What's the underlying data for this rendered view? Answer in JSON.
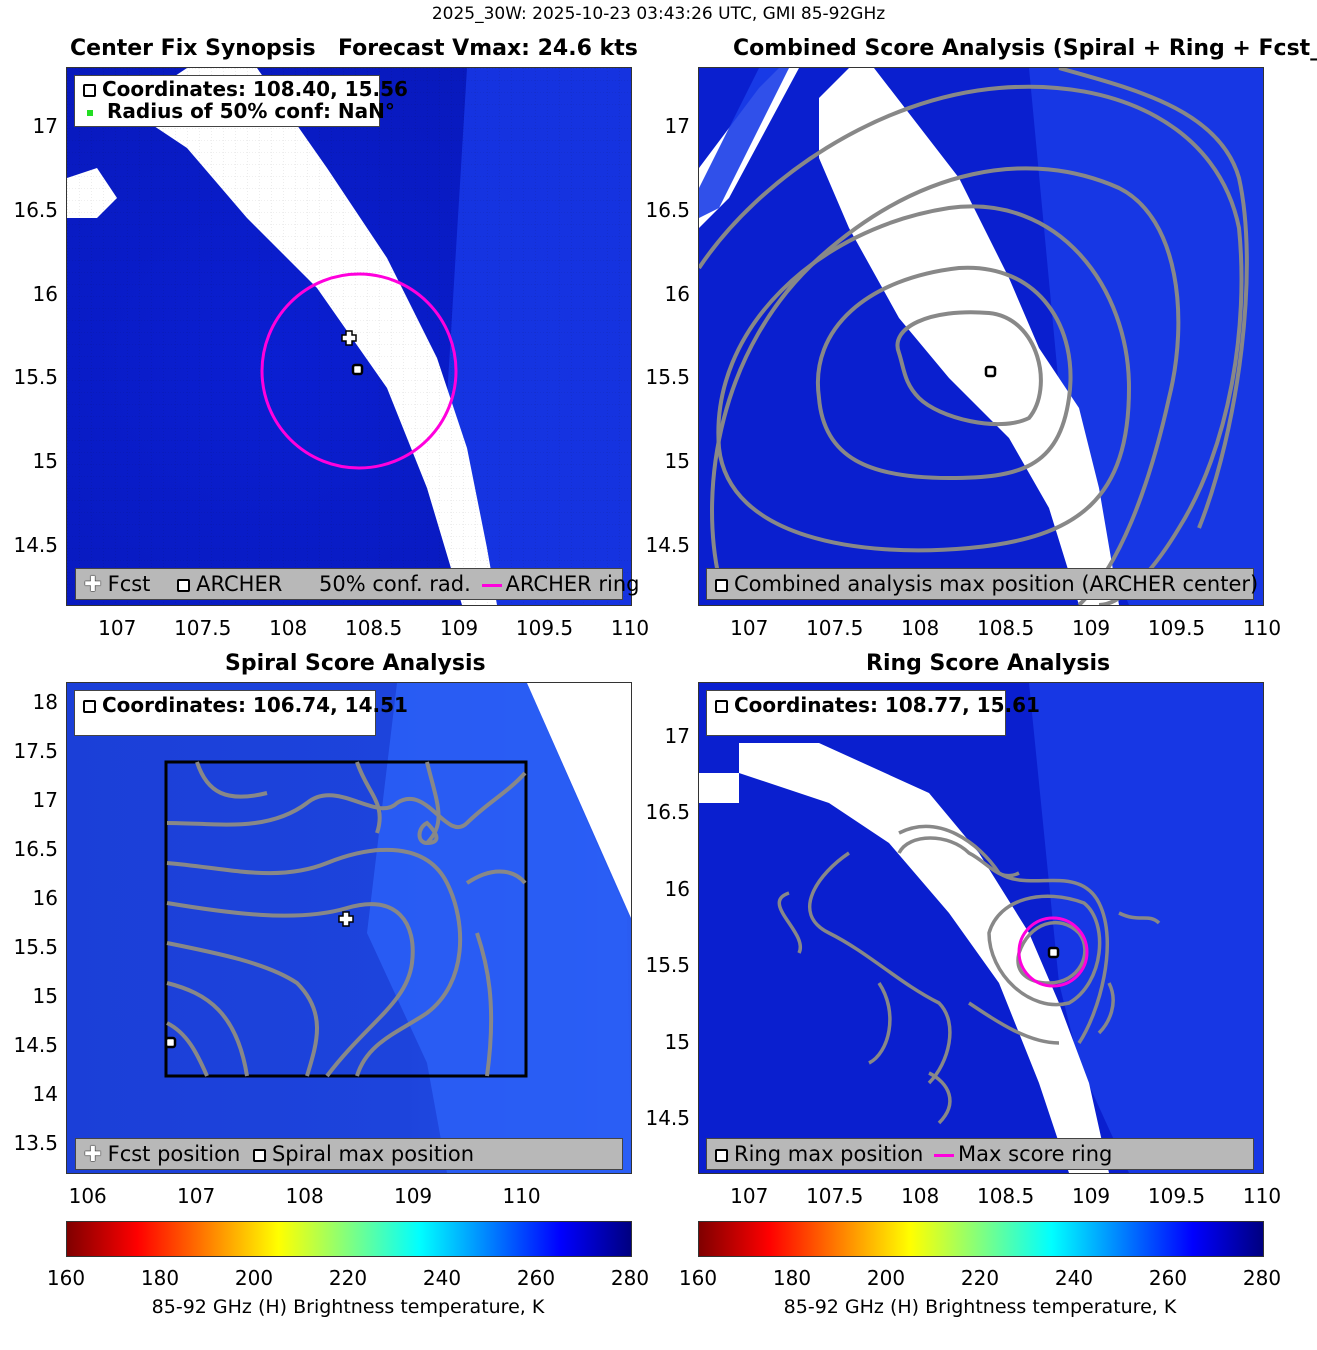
{
  "suptitle": "2025_30W: 2025-10-23 03:43:26 UTC, GMI 85-92GHz",
  "colors": {
    "background": "#0a1fd0",
    "contour": "#888888",
    "ring": "#ff00dd",
    "swath_gap": "#ffffff"
  },
  "panels": {
    "synopsis": {
      "title_left": "Center Fix Synopsis",
      "title_right": "Forecast Vmax: 24.6 kts",
      "legend_top": [
        "Coordinates: 108.40, 15.56",
        "Radius of 50% conf: NaN°"
      ],
      "legend_bottom": {
        "fcst": "Fcst",
        "archer": "ARCHER",
        "conf": "50% conf. rad.",
        "ring": "ARCHER ring"
      }
    },
    "combined": {
      "title": "Combined Score Analysis (Spiral + Ring + Fcst_Pe",
      "legend_bottom": "Combined analysis max position (ARCHER center)"
    },
    "spiral": {
      "title": "Spiral Score Analysis",
      "legend_top": "Coordinates: 106.74, 14.51",
      "legend_bottom": {
        "fcst": "Fcst position",
        "max": "Spiral max position"
      }
    },
    "ring": {
      "title": "Ring Score Analysis",
      "legend_top": "Coordinates: 108.77, 15.61",
      "legend_bottom": {
        "max": "Ring max position",
        "ring": "Max score ring"
      }
    }
  },
  "colorbar": {
    "label": "85-92 GHz (H) Brightness temperature, K",
    "ticks": [
      "160",
      "180",
      "200",
      "220",
      "240",
      "260",
      "280"
    ],
    "range": [
      160,
      280
    ]
  },
  "chart_data": [
    {
      "type": "heatmap",
      "title": "Center Fix Synopsis     Forecast Vmax: 24.6 kts",
      "xlim": [
        106.7,
        110
      ],
      "ylim": [
        14.15,
        17.35
      ],
      "xticks": [
        "107",
        "107.5",
        "108",
        "108.5",
        "109",
        "109.5",
        "110"
      ],
      "yticks": [
        "14.5",
        "15",
        "15.5",
        "16",
        "16.5",
        "17"
      ],
      "markers": {
        "fcst": [
          108.35,
          15.75
        ],
        "archer": [
          108.4,
          15.56
        ]
      },
      "ring": {
        "center": [
          108.4,
          15.56
        ],
        "radius_deg": 0.58
      }
    },
    {
      "type": "heatmap",
      "title": "Combined Score Analysis (Spiral + Ring + Fcst_Pe",
      "xlim": [
        106.7,
        110
      ],
      "ylim": [
        14.15,
        17.35
      ],
      "xticks": [
        "107",
        "107.5",
        "108",
        "108.5",
        "109",
        "109.5",
        "110"
      ],
      "yticks": [
        "14.5",
        "15",
        "15.5",
        "16",
        "16.5",
        "17"
      ],
      "markers": {
        "combined_max": [
          108.4,
          15.56
        ]
      }
    },
    {
      "type": "heatmap",
      "title": "Spiral Score Analysis",
      "xlim": [
        105.8,
        111.0
      ],
      "ylim": [
        13.2,
        18.2
      ],
      "xticks": [
        "106",
        "107",
        "108",
        "109",
        "110"
      ],
      "yticks": [
        "13.5",
        "14",
        "14.5",
        "15",
        "15.5",
        "16",
        "16.5",
        "17",
        "17.5",
        "18"
      ],
      "markers": {
        "fcst": [
          108.35,
          15.75
        ],
        "spiral_max": [
          106.74,
          14.51
        ]
      },
      "search_box": {
        "x": [
          106.7,
          110.0
        ],
        "y": [
          14.15,
          17.35
        ]
      }
    },
    {
      "type": "heatmap",
      "title": "Ring Score Analysis",
      "xlim": [
        106.7,
        110
      ],
      "ylim": [
        14.15,
        17.35
      ],
      "xticks": [
        "107",
        "107.5",
        "108",
        "108.5",
        "109",
        "109.5",
        "110"
      ],
      "yticks": [
        "14.5",
        "15",
        "15.5",
        "16",
        "16.5",
        "17"
      ],
      "markers": {
        "ring_max": [
          108.77,
          15.61
        ]
      },
      "ring": {
        "center": [
          108.77,
          15.61
        ],
        "radius_deg": 0.2
      }
    }
  ]
}
